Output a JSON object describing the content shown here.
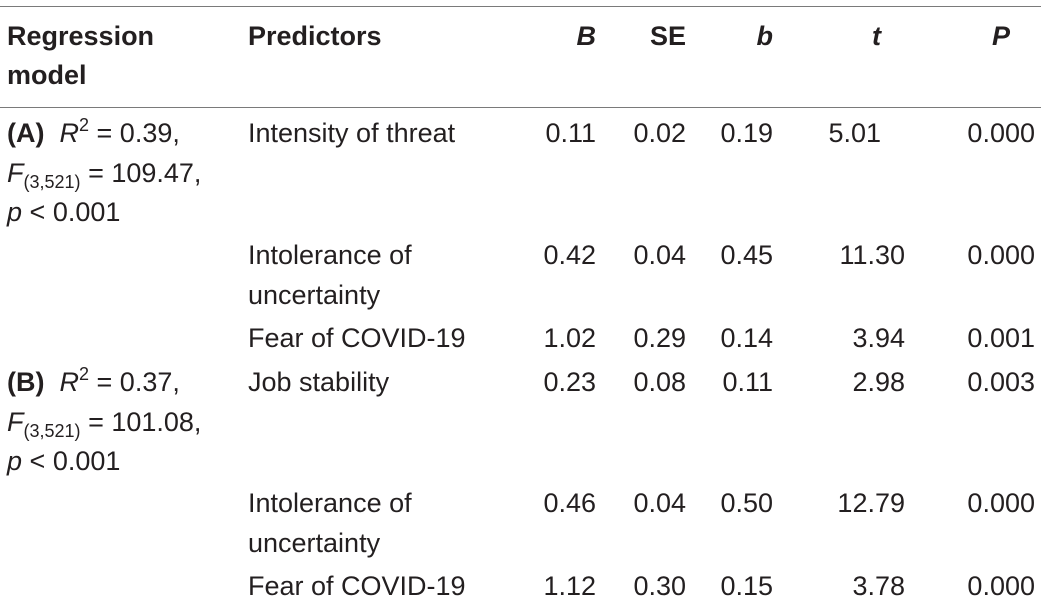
{
  "table": {
    "headers": {
      "model": "Regression",
      "model_line2": "model",
      "predictors": "Predictors",
      "B": "B",
      "SE": "SE",
      "beta": "b",
      "t": "t",
      "P": "P"
    },
    "model_a": {
      "tag": "(A)",
      "r_sym": "R",
      "r_exp": "2",
      "r_val": "= 0.39,",
      "f_sym": "F",
      "f_sub": "(3,521)",
      "f_val": "= 109.47,",
      "p_sym": "p",
      "p_val": "< 0.001"
    },
    "model_b": {
      "tag": "(B)",
      "r_sym": "R",
      "r_exp": "2",
      "r_val": "= 0.37,",
      "f_sym": "F",
      "f_sub": "(3,521)",
      "f_val": "= 101.08,",
      "p_sym": "p",
      "p_val": "< 0.001"
    },
    "rows": [
      {
        "predictor": "Intensity of threat",
        "B": "0.11",
        "SE": "0.02",
        "beta": "0.19",
        "t": "5.01",
        "P": "0.000"
      },
      {
        "predictor": "Intolerance of",
        "predictor_line2": "uncertainty",
        "B": "0.42",
        "SE": "0.04",
        "beta": "0.45",
        "t": "11.30",
        "P": "0.000"
      },
      {
        "predictor": "Fear of COVID-19",
        "B": "1.02",
        "SE": "0.29",
        "beta": "0.14",
        "t": "3.94",
        "P": "0.001"
      },
      {
        "predictor": "Job stability",
        "B": "0.23",
        "SE": "0.08",
        "beta": "0.11",
        "t": "2.98",
        "P": "0.003"
      },
      {
        "predictor": "Intolerance of",
        "predictor_line2": "uncertainty",
        "B": "0.46",
        "SE": "0.04",
        "beta": "0.50",
        "t": "12.79",
        "P": "0.000"
      },
      {
        "predictor": "Fear of COVID-19",
        "B": "1.12",
        "SE": "0.30",
        "beta": "0.15",
        "t": "3.78",
        "P": "0.000"
      }
    ]
  }
}
